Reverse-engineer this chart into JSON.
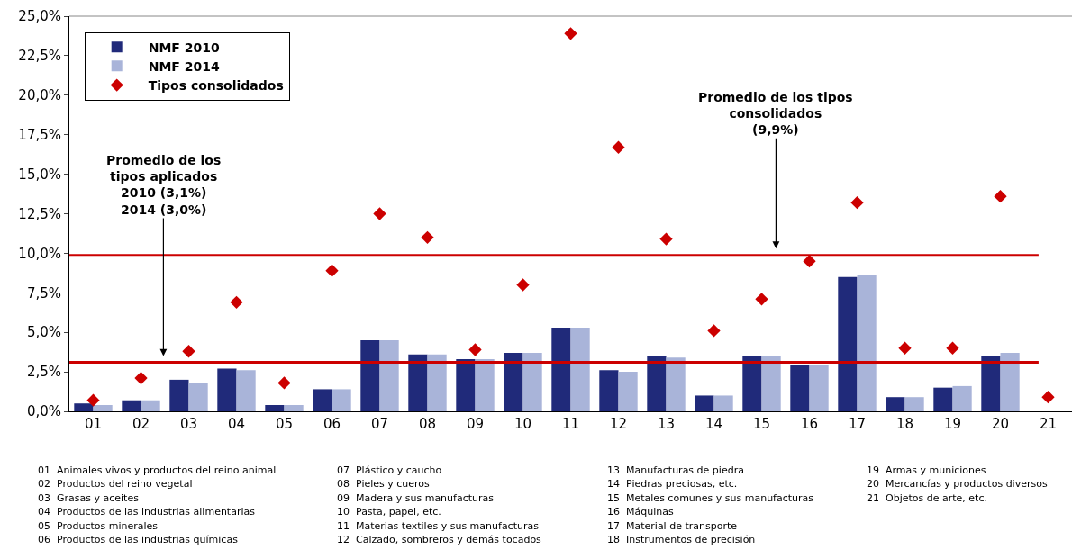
{
  "chart_data": {
    "type": "bar",
    "categories": [
      "01",
      "02",
      "03",
      "04",
      "05",
      "06",
      "07",
      "08",
      "09",
      "10",
      "11",
      "12",
      "13",
      "14",
      "15",
      "16",
      "17",
      "18",
      "19",
      "20",
      "21"
    ],
    "series": [
      {
        "name": "NMF 2010",
        "color": "#202a7a",
        "values": [
          0.5,
          0.7,
          2.0,
          2.7,
          0.4,
          1.4,
          4.5,
          3.6,
          3.3,
          3.7,
          5.3,
          2.6,
          3.5,
          1.0,
          3.5,
          2.9,
          8.5,
          0.9,
          1.5,
          3.5,
          null
        ]
      },
      {
        "name": "NMF 2014",
        "color": "#a9b4d9",
        "values": [
          0.4,
          0.7,
          1.8,
          2.6,
          0.4,
          1.4,
          4.5,
          3.6,
          3.3,
          3.7,
          5.3,
          2.5,
          3.4,
          1.0,
          3.5,
          2.9,
          8.6,
          0.9,
          1.6,
          3.7,
          null
        ]
      },
      {
        "name": "Tipos consolidados",
        "type": "scatter",
        "marker": "diamond",
        "color": "#cc0000",
        "values": [
          0.7,
          2.1,
          3.8,
          6.9,
          1.8,
          8.9,
          12.5,
          11.0,
          3.9,
          8.0,
          23.9,
          16.7,
          10.9,
          5.1,
          7.1,
          9.5,
          13.2,
          4.0,
          4.0,
          13.6,
          0.9
        ]
      }
    ],
    "ylim": [
      0,
      25
    ],
    "yticks": [
      {
        "value": 0,
        "label": "0,0%"
      },
      {
        "value": 2.5,
        "label": "2,5%"
      },
      {
        "value": 5,
        "label": "5,0%"
      },
      {
        "value": 7.5,
        "label": "7,5%"
      },
      {
        "value": 10,
        "label": "10,0%"
      },
      {
        "value": 12.5,
        "label": "12,5%"
      },
      {
        "value": 15,
        "label": "15,0%"
      },
      {
        "value": 17.5,
        "label": "17,5%"
      },
      {
        "value": 20,
        "label": "20,0%"
      },
      {
        "value": 22.5,
        "label": "22,5%"
      },
      {
        "value": 25,
        "label": "25,0%"
      }
    ],
    "ref_lines": [
      {
        "axis": "y",
        "value": 3.1,
        "color": "#cc0000",
        "label": "Promedio de los\ntipos aplicados\n2010 (3,1%)\n2014 (3,0%)"
      },
      {
        "axis": "y",
        "value": 9.9,
        "color": "#cc0000",
        "label": "Promedio de los tipos\nconsolidados\n(9,9%)"
      }
    ],
    "legend": "top left",
    "annotations": [
      "01  Animales vivos y productos del reino animal",
      "02  Productos del reino vegetal",
      "03  Grasas y aceites",
      "04  Productos de las industrias alimentarias",
      "05  Productos minerales",
      "06  Productos de las industrias químicas",
      "07  Plástico y caucho",
      "08  Pieles y cueros",
      "09  Madera y sus manufacturas",
      "10  Pasta, papel, etc.",
      "11  Materias textiles y sus manufacturas",
      "12  Calzado, sombreros y demás tocados",
      "13  Manufacturas de piedra",
      "14  Piedras preciosas, etc.",
      "15  Metales comunes y sus manufacturas",
      "16  Máquinas",
      "17  Material de transporte",
      "18  Instrumentos de precisión",
      "19  Armas y municiones",
      "20  Mercancías y productos diversos",
      "21  Objetos de arte, etc."
    ]
  }
}
